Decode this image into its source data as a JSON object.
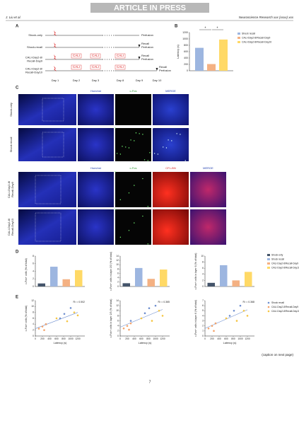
{
  "header": {
    "banner": "ARTICLE IN PRESS",
    "authors": "J. Liu et al.",
    "journal": "Neuroscience Research xxx (xxxx) xxx"
  },
  "panel_a": {
    "label": "A",
    "rows": [
      [
        "Shock-only"
      ],
      [
        "Shock-recall"
      ],
      [
        "CALI-Day2-8/",
        "Recall-Day9"
      ],
      [
        "CALI-Day2-8/",
        "Recall-Day10"
      ]
    ],
    "days": [
      "Day 1",
      "Day 2",
      "Day 3",
      "Day 8",
      "Day 9",
      "Day 10"
    ],
    "cali": "CALI",
    "recall": "Recall",
    "perfusion": "Perfusion"
  },
  "panel_b": {
    "label": "B",
    "chart_data": {
      "type": "bar",
      "ylabel": "Latency (s)",
      "ylim": [
        0,
        1200
      ],
      "yticks": [
        0,
        200,
        400,
        600,
        800,
        1000,
        1200
      ],
      "significance": [
        "*",
        "*"
      ],
      "series": [
        {
          "name": "Shock recall",
          "color": "#9db6e0",
          "values": [
            720
          ]
        },
        {
          "name": "CALI-Day2-8/Recall-Day9",
          "color": "#f4b183",
          "values": [
            210
          ]
        },
        {
          "name": "CALI-Day2-8/Recall-Day10",
          "color": "#ffd966",
          "values": [
            980
          ]
        }
      ]
    }
  },
  "panel_c": {
    "label": "C",
    "top_columns": [
      "Hoechst",
      "c-Fos",
      "MERGE"
    ],
    "top_rows": [
      [
        "Shock-only"
      ],
      [
        "Shock recall"
      ]
    ],
    "bottom_columns": [
      "Hoechst",
      "c-Fos",
      "CFL-BN",
      "MERGE"
    ],
    "bottom_rows": [
      [
        "CALI-Day2-8/",
        "Recall-Day9"
      ],
      [
        "CALI-Day2-8/",
        "Recall-Day10"
      ]
    ]
  },
  "panel_d": {
    "label": "D",
    "legend": [
      {
        "name": "Shock-only",
        "color": "#44546a"
      },
      {
        "name": "Shock recall",
        "color": "#9db6e0"
      },
      {
        "name": "CALI-Day2-8/Recall-Day9",
        "color": "#f4b183"
      },
      {
        "name": "CALI-Day2-8/Recall-Day10",
        "color": "#ffd966"
      }
    ],
    "charts": [
      {
        "type": "bar",
        "ylabel": "c-Fos+ cells (% of total)",
        "ylim": [
          0,
          8
        ],
        "yticks": [
          0,
          2,
          4,
          6,
          8
        ],
        "values": [
          0.8,
          5.2,
          1.9,
          4.3
        ]
      },
      {
        "type": "bar",
        "ylabel": "c-Fos+ cells in layer 2/3 (% of total)",
        "ylim": [
          0,
          14
        ],
        "yticks": [
          0,
          2,
          4,
          6,
          8,
          10,
          12,
          14
        ],
        "values": [
          1.5,
          8.5,
          3.5,
          7.8
        ]
      },
      {
        "type": "bar",
        "ylabel": "c-Fos+ cells in layer 6 (% of total)",
        "ylim": [
          0,
          10
        ],
        "yticks": [
          0,
          2,
          4,
          6,
          8,
          10
        ],
        "values": [
          1.2,
          7,
          2,
          4.8
        ]
      }
    ]
  },
  "panel_e": {
    "label": "E",
    "legend": [
      {
        "name": "Shock recall",
        "color": "#6f8fcf"
      },
      {
        "name": "CALI-Day2-8/Recall-Day9",
        "color": "#f4a36a"
      },
      {
        "name": "CALI-Day2-8/Recall-Day10",
        "color": "#f5c542"
      }
    ],
    "charts": [
      {
        "type": "scatter",
        "ylabel": "c-Fos+ cells (% of total)",
        "xlabel": "Latency (s)",
        "annotation": "R² = 0.502",
        "xlim": [
          0,
          1400
        ],
        "xticks": [
          0,
          200,
          400,
          600,
          800,
          1000,
          1200
        ],
        "ylim": [
          0,
          12
        ],
        "yticks": [
          0,
          2,
          4,
          6,
          8,
          10,
          12
        ],
        "series": [
          {
            "x": [
              300,
              700,
              820,
              1000
            ],
            "y": [
              4,
              6,
              7.5,
              9.5
            ]
          },
          {
            "x": [
              100,
              200,
              250,
              300
            ],
            "y": [
              2.5,
              3.2,
              2,
              4
            ]
          },
          {
            "x": [
              600,
              900,
              1100,
              1200
            ],
            "y": [
              6,
              5,
              8,
              7
            ]
          }
        ],
        "trendline": {
          "x": [
            0,
            1200
          ],
          "y": [
            2.5,
            8
          ]
        }
      },
      {
        "type": "scatter",
        "ylabel": "c-Fos+ cells in layer 2/3 (% of total)",
        "xlabel": "Latency (s)",
        "annotation": "R² = 0.365",
        "xlim": [
          0,
          1400
        ],
        "xticks": [
          0,
          200,
          400,
          600,
          800,
          1000,
          1200
        ],
        "ylim": [
          0,
          14
        ],
        "yticks": [
          0,
          2,
          4,
          6,
          8,
          10,
          12,
          14
        ],
        "series": [
          {
            "x": [
              300,
              700,
              820,
              1000
            ],
            "y": [
              6,
              9,
              11,
              12
            ]
          },
          {
            "x": [
              100,
              200,
              250,
              300
            ],
            "y": [
              3,
              4,
              2.5,
              5
            ]
          },
          {
            "x": [
              600,
              900,
              1100,
              1200
            ],
            "y": [
              7,
              6,
              10,
              8
            ]
          }
        ],
        "trendline": {
          "x": [
            0,
            1200
          ],
          "y": [
            3.5,
            10.5
          ]
        }
      },
      {
        "type": "scatter",
        "ylabel": "c-Fos+ cells in layer 6 (% of total)",
        "xlabel": "Latency (s)",
        "annotation": "R² = 0.368",
        "xlim": [
          0,
          1400
        ],
        "xticks": [
          0,
          200,
          400,
          600,
          800,
          1000,
          1200
        ],
        "ylim": [
          0,
          7
        ],
        "yticks": [
          0,
          1,
          2,
          3,
          4,
          5,
          6,
          7
        ],
        "series": [
          {
            "x": [
              300,
              700,
              820,
              1000
            ],
            "y": [
              2.5,
              4,
              5,
              6
            ]
          },
          {
            "x": [
              100,
              200,
              250,
              300
            ],
            "y": [
              1.5,
              2,
              1,
              2.5
            ]
          },
          {
            "x": [
              600,
              900,
              1100,
              1200
            ],
            "y": [
              3.5,
              3,
              5,
              4
            ]
          }
        ],
        "trendline": {
          "x": [
            0,
            1200
          ],
          "y": [
            1.5,
            5.2
          ]
        }
      }
    ]
  },
  "caption": "(caption on next page)",
  "page_number": "7"
}
